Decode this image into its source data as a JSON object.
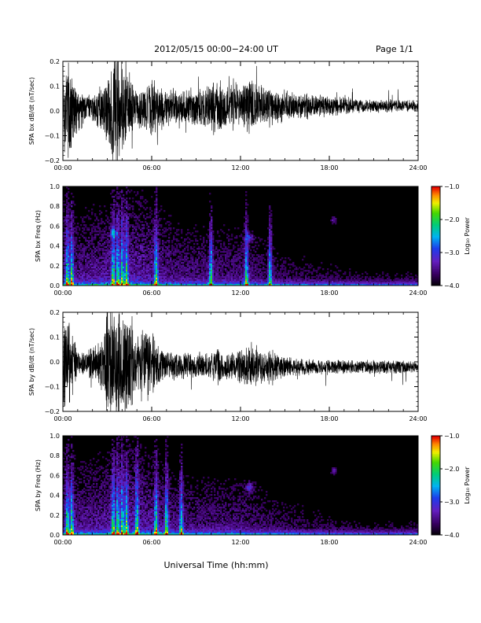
{
  "header": {
    "title": "2012/05/15   00:00−24:00 UT",
    "page": "Page 1/1"
  },
  "footer": {
    "xlabel": "Universal Time (hh:mm)"
  },
  "colorbar": {
    "label": "Log₁₀ Power",
    "ticks": [
      "−1.0",
      "−2.0",
      "−3.0",
      "−4.0"
    ],
    "range": [
      -4.0,
      -1.0
    ]
  },
  "chart_data": [
    {
      "type": "line",
      "ylabel": "SPA bx dB/dt (nT/sec)",
      "xlim": [
        0,
        24
      ],
      "ylim": [
        -0.2,
        0.2
      ],
      "xticks": [
        "00:00",
        "06:00",
        "12:00",
        "18:00",
        "24:00"
      ],
      "yticks": [
        "0.2",
        "0.1",
        "0.0",
        "−0.1",
        "−0.2"
      ],
      "envelope": {
        "hours": [
          0,
          0.5,
          1,
          1.5,
          2,
          2.5,
          3,
          3.5,
          4,
          4.5,
          5,
          5.5,
          6,
          6.5,
          7,
          8,
          9,
          10,
          10.5,
          11,
          11.5,
          12,
          12.5,
          13,
          13.5,
          14,
          14.5,
          15,
          16,
          17,
          18,
          19,
          20,
          21,
          22,
          23,
          24
        ],
        "amplitude": [
          0.18,
          0.25,
          0.1,
          0.07,
          0.06,
          0.1,
          0.15,
          0.26,
          0.25,
          0.15,
          0.08,
          0.1,
          0.13,
          0.1,
          0.08,
          0.09,
          0.08,
          0.1,
          0.13,
          0.11,
          0.12,
          0.08,
          0.14,
          0.1,
          0.09,
          0.1,
          0.08,
          0.07,
          0.06,
          0.05,
          0.045,
          0.04,
          0.035,
          0.03,
          0.03,
          0.025,
          0.025
        ],
        "offset": 0.02
      }
    },
    {
      "type": "heatmap",
      "ylabel": "SPA bx Freq (Hz)",
      "xlim": [
        0,
        24
      ],
      "ylim": [
        0.0,
        1.0
      ],
      "xticks": [
        "00:00",
        "06:00",
        "12:00",
        "18:00",
        "24:00"
      ],
      "yticks": [
        "1.0",
        "0.8",
        "0.6",
        "0.4",
        "0.2",
        "0.0"
      ],
      "zlim": [
        -4.0,
        -1.0
      ],
      "bright_bursts_hours": [
        0.3,
        0.6,
        3.4,
        3.7,
        4.0,
        4.3,
        6.3,
        10.0,
        12.4,
        14.0
      ],
      "spots": [
        {
          "hour": 18.3,
          "freq": 0.66
        },
        {
          "hour": 12.6,
          "freq": 0.48
        },
        {
          "hour": 3.4,
          "freq": 0.53
        }
      ]
    },
    {
      "type": "line",
      "ylabel": "SPA by dB/dt (nT/sec)",
      "xlim": [
        0,
        24
      ],
      "ylim": [
        -0.2,
        0.2
      ],
      "xticks": [
        "00:00",
        "06:00",
        "12:00",
        "18:00",
        "24:00"
      ],
      "yticks": [
        "0.2",
        "0.1",
        "0.0",
        "−0.1",
        "−0.2"
      ],
      "envelope": {
        "hours": [
          0,
          0.5,
          1,
          1.5,
          2,
          2.5,
          3,
          3.5,
          4,
          4.5,
          5,
          5.5,
          6,
          6.5,
          7,
          8,
          9,
          10,
          10.5,
          11,
          11.5,
          12,
          12.5,
          13,
          13.5,
          14,
          14.5,
          15,
          16,
          17,
          18,
          19,
          20,
          21,
          22,
          23,
          24
        ],
        "amplitude": [
          0.22,
          0.2,
          0.05,
          0.05,
          0.08,
          0.1,
          0.25,
          0.26,
          0.25,
          0.24,
          0.12,
          0.18,
          0.14,
          0.08,
          0.07,
          0.06,
          0.06,
          0.06,
          0.08,
          0.06,
          0.06,
          0.07,
          0.09,
          0.1,
          0.07,
          0.09,
          0.06,
          0.05,
          0.04,
          0.035,
          0.035,
          0.03,
          0.03,
          0.03,
          0.03,
          0.03,
          0.025
        ],
        "offset": -0.02
      }
    },
    {
      "type": "heatmap",
      "ylabel": "SPA by Freq (Hz)",
      "xlim": [
        0,
        24
      ],
      "ylim": [
        0.0,
        1.0
      ],
      "xticks": [
        "00:00",
        "06:00",
        "12:00",
        "18:00",
        "24:00"
      ],
      "yticks": [
        "1.0",
        "0.8",
        "0.6",
        "0.4",
        "0.2",
        "0.0"
      ],
      "zlim": [
        -4.0,
        -1.0
      ],
      "bright_bursts_hours": [
        0.3,
        0.6,
        3.4,
        3.7,
        4.0,
        4.3,
        5.0,
        6.3,
        7.0,
        8.0
      ],
      "spots": [
        {
          "hour": 18.3,
          "freq": 0.65
        },
        {
          "hour": 12.6,
          "freq": 0.48
        }
      ]
    }
  ]
}
